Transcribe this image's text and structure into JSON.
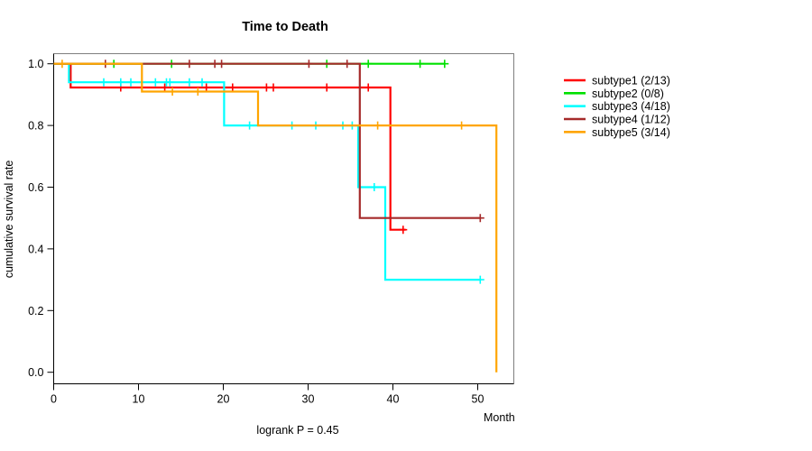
{
  "chart_data": {
    "type": "line",
    "chart_style": "kaplan-meier-step-survival",
    "title": "Time to Death",
    "xlabel": "Month",
    "ylabel": "cumulative survival rate",
    "annotation": "logrank P = 0.45",
    "xlim": [
      0,
      54.2
    ],
    "ylim": [
      0,
      1.0
    ],
    "x_ticks": [
      0,
      10,
      20,
      30,
      40,
      50
    ],
    "y_ticks": [
      "0.0",
      "0.2",
      "0.4",
      "0.6",
      "0.8",
      "1.0"
    ],
    "grid": false,
    "legend_position": "right-outside",
    "axis_color": "#000000",
    "box_color": "#7f7f7f",
    "series": [
      {
        "name": "subtype1",
        "label": "subtype1 (2/13)",
        "color": "#FF0000",
        "steps": [
          [
            0,
            1.0
          ],
          [
            2.0,
            1.0
          ],
          [
            2.0,
            0.923
          ],
          [
            39.7,
            0.923
          ],
          [
            39.7,
            0.462
          ],
          [
            41.5,
            0.462
          ]
        ],
        "censors": [
          [
            7.9,
            0.923
          ],
          [
            13.1,
            0.923
          ],
          [
            18.0,
            0.923
          ],
          [
            21.1,
            0.923
          ],
          [
            25.1,
            0.923
          ],
          [
            25.9,
            0.923
          ],
          [
            32.2,
            0.923
          ],
          [
            37.1,
            0.923
          ],
          [
            41.2,
            0.462
          ]
        ]
      },
      {
        "name": "subtype2",
        "label": "subtype2 (0/8)",
        "color": "#00E000",
        "steps": [
          [
            0,
            1.0
          ],
          [
            46.1,
            1.0
          ]
        ],
        "censors": [
          [
            7.1,
            1.0
          ],
          [
            13.9,
            1.0
          ],
          [
            32.2,
            1.0
          ],
          [
            37.1,
            1.0
          ],
          [
            43.2,
            1.0
          ],
          [
            46.1,
            1.0
          ]
        ]
      },
      {
        "name": "subtype3",
        "label": "subtype3 (4/18)",
        "color": "#00FFFF",
        "steps": [
          [
            0,
            1.0
          ],
          [
            1.8,
            1.0
          ],
          [
            1.8,
            0.94
          ],
          [
            20.1,
            0.94
          ],
          [
            20.1,
            0.8
          ],
          [
            35.9,
            0.8
          ],
          [
            35.9,
            0.6
          ],
          [
            39.1,
            0.6
          ],
          [
            39.1,
            0.3
          ],
          [
            50.3,
            0.3
          ]
        ],
        "censors": [
          [
            5.9,
            0.94
          ],
          [
            7.9,
            0.94
          ],
          [
            9.1,
            0.94
          ],
          [
            12.0,
            0.94
          ],
          [
            13.3,
            0.94
          ],
          [
            13.7,
            0.94
          ],
          [
            16.0,
            0.94
          ],
          [
            17.5,
            0.94
          ],
          [
            23.1,
            0.8
          ],
          [
            28.1,
            0.8
          ],
          [
            30.9,
            0.8
          ],
          [
            34.1,
            0.8
          ],
          [
            35.2,
            0.8
          ],
          [
            37.8,
            0.6
          ],
          [
            50.3,
            0.3
          ]
        ]
      },
      {
        "name": "subtype4",
        "label": "subtype4 (1/12)",
        "color": "#A52A2A",
        "steps": [
          [
            0,
            1.0
          ],
          [
            36.1,
            1.0
          ],
          [
            36.1,
            0.5
          ],
          [
            50.3,
            0.5
          ]
        ],
        "censors": [
          [
            6.1,
            1.0
          ],
          [
            16.0,
            1.0
          ],
          [
            19.0,
            1.0
          ],
          [
            19.8,
            1.0
          ],
          [
            30.1,
            1.0
          ],
          [
            34.6,
            1.0
          ],
          [
            50.3,
            0.5
          ]
        ]
      },
      {
        "name": "subtype5",
        "label": "subtype5 (3/14)",
        "color": "#FFA500",
        "steps": [
          [
            0,
            1.0
          ],
          [
            10.4,
            1.0
          ],
          [
            10.4,
            0.91
          ],
          [
            24.1,
            0.91
          ],
          [
            24.1,
            0.8
          ],
          [
            52.2,
            0.8
          ],
          [
            52.2,
            0.0
          ]
        ],
        "censors": [
          [
            1.0,
            1.0
          ],
          [
            14.0,
            0.91
          ],
          [
            17.0,
            0.91
          ],
          [
            38.2,
            0.8
          ],
          [
            48.1,
            0.8
          ]
        ]
      }
    ]
  }
}
